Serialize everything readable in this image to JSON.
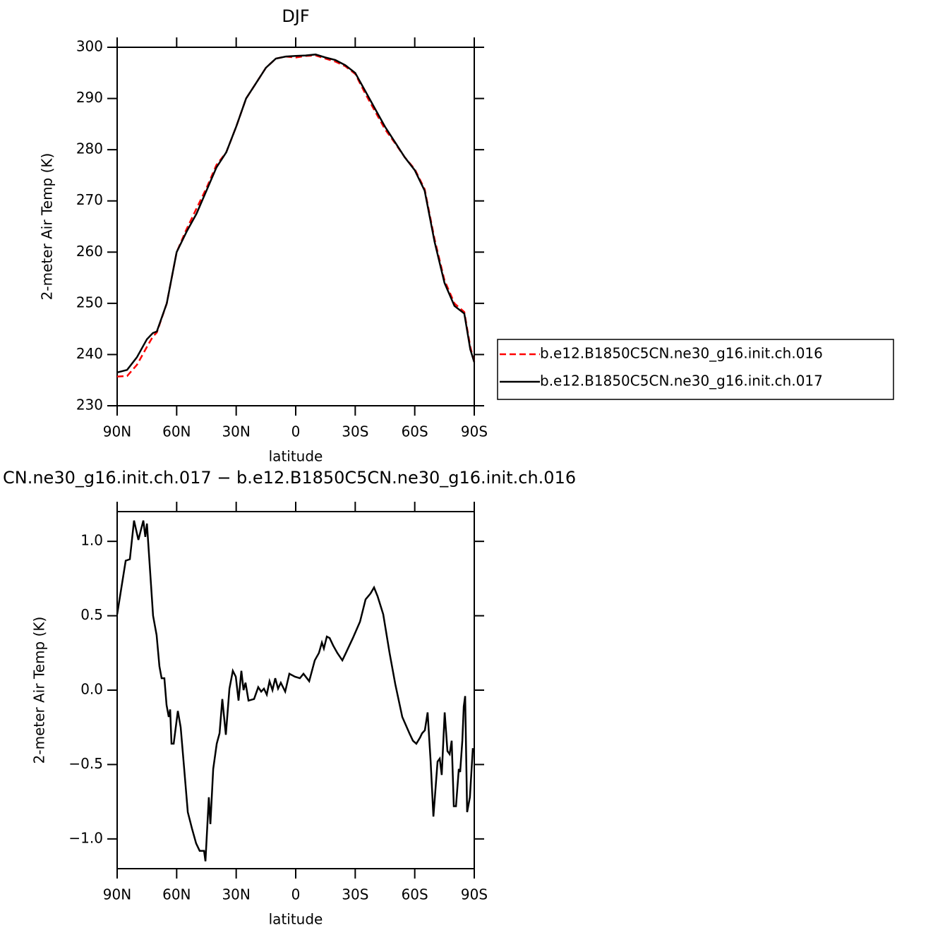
{
  "chart_data": [
    {
      "type": "line",
      "title": "DJF",
      "xlabel": "latitude",
      "ylabel": "2-meter Air Temp (K)",
      "x": [
        90,
        85,
        80,
        75,
        72,
        70,
        65,
        60,
        55,
        50,
        45,
        40,
        35,
        30,
        25,
        20,
        15,
        10,
        5,
        0,
        -5,
        -10,
        -15,
        -20,
        -25,
        -30,
        -35,
        -40,
        -45,
        -50,
        -55,
        -60,
        -65,
        -70,
        -75,
        -80,
        -85,
        -88,
        -90
      ],
      "series": [
        {
          "name": "b.e12.B1850C5CN.ne30_g16.init.ch.016",
          "color": "#ff0000",
          "line_style": "dashed",
          "values": [
            235.7,
            235.8,
            238,
            241.5,
            243.5,
            244.3,
            250,
            260,
            264.5,
            268.5,
            272.5,
            277,
            279.5,
            284.5,
            290,
            293,
            296,
            297.8,
            298.2,
            298,
            298.3,
            298.4,
            297.8,
            297.2,
            296.3,
            294.8,
            291,
            287.5,
            284,
            281.3,
            278.5,
            276.2,
            272.3,
            262.5,
            254.5,
            250,
            248.3,
            241.5,
            238.5
          ]
        },
        {
          "name": "b.e12.B1850C5CN.ne30_g16.init.ch.017",
          "color": "#000000",
          "line_style": "solid",
          "values": [
            236.5,
            237,
            239.5,
            243,
            244.2,
            244.5,
            250,
            260,
            264,
            267.5,
            272,
            276.5,
            279.5,
            284.5,
            290,
            293,
            296,
            297.8,
            298.2,
            298.3,
            298.4,
            298.6,
            298,
            297.5,
            296.5,
            295,
            291.5,
            288,
            284.5,
            281.5,
            278.5,
            276,
            272,
            262,
            254,
            249.5,
            248,
            241,
            238.5
          ]
        }
      ],
      "xlim": [
        90,
        -90
      ],
      "xticks": [
        {
          "value": 90,
          "label": "90N"
        },
        {
          "value": 60,
          "label": "60N"
        },
        {
          "value": 30,
          "label": "30N"
        },
        0,
        {
          "value": -30,
          "label": "30S"
        },
        {
          "value": -60,
          "label": "60S"
        },
        {
          "value": -90,
          "label": "90S"
        }
      ],
      "ylim": [
        230,
        300
      ],
      "yticks": [
        230,
        240,
        250,
        260,
        270,
        280,
        290,
        300
      ],
      "legend": "right"
    },
    {
      "type": "line",
      "title": "CN.ne30_g16.init.ch.017 − b.e12.B1850C5CN.ne30_g16.init.ch.016",
      "xlabel": "latitude",
      "ylabel": "2-meter Air Temp (K)",
      "x": [
        90,
        85.7,
        83.6,
        81.5,
        79.3,
        76.8,
        75.8,
        75,
        71.9,
        70.1,
        68.7,
        67.6,
        66.2,
        65.1,
        64,
        63.3,
        62.6,
        61.5,
        59.4,
        58,
        56.2,
        54.4,
        52.3,
        50.2,
        48.4,
        46.2,
        45.5,
        43.8,
        43,
        41.6,
        39.8,
        38.4,
        37,
        35.2,
        33.4,
        31.7,
        30.2,
        28.8,
        27.4,
        26.3,
        25.3,
        23.8,
        21,
        18.9,
        17.4,
        16,
        14.6,
        13.2,
        11.7,
        10.3,
        8.9,
        7.5,
        5.3,
        3.2,
        0.4,
        -2.1,
        -3.9,
        -6.8,
        -9.6,
        -11.7,
        -13.2,
        -14.2,
        -15.7,
        -17.1,
        -18.9,
        -21,
        -23.5,
        -25.3,
        -28.8,
        -32.4,
        -35.2,
        -37.7,
        -39.5,
        -41.3,
        -44.1,
        -47.3,
        -50.2,
        -53.7,
        -57.3,
        -59.1,
        -60.8,
        -62.6,
        -63.7,
        -65.1,
        -66.5,
        -68,
        -69.4,
        -71.5,
        -72.6,
        -73.6,
        -75.1,
        -76.5,
        -77.6,
        -78.6,
        -79.7,
        -80.8,
        -82.2,
        -82.9,
        -84,
        -84.7,
        -85.4,
        -86.4,
        -87.8,
        -89.3
      ],
      "series": [
        {
          "color": "#000000",
          "line_style": "solid",
          "values": [
            0.51,
            0.87,
            0.88,
            1.14,
            1.01,
            1.14,
            1.03,
            1.12,
            0.5,
            0.37,
            0.16,
            0.08,
            0.08,
            -0.1,
            -0.18,
            -0.13,
            -0.36,
            -0.36,
            -0.14,
            -0.25,
            -0.53,
            -0.82,
            -0.93,
            -1.03,
            -1.08,
            -1.08,
            -1.15,
            -0.72,
            -0.9,
            -0.53,
            -0.36,
            -0.29,
            -0.06,
            -0.3,
            0.01,
            0.13,
            0.09,
            -0.07,
            0.13,
            0,
            0.05,
            -0.07,
            -0.06,
            0.02,
            -0.01,
            0.01,
            -0.03,
            0.06,
            0,
            0.08,
            0.01,
            0.05,
            -0.01,
            0.11,
            0.09,
            0.08,
            0.11,
            0.06,
            0.2,
            0.25,
            0.32,
            0.28,
            0.36,
            0.35,
            0.3,
            0.25,
            0.2,
            0.25,
            0.35,
            0.46,
            0.61,
            0.65,
            0.69,
            0.63,
            0.51,
            0.25,
            0.04,
            -0.18,
            -0.29,
            -0.34,
            -0.36,
            -0.32,
            -0.29,
            -0.27,
            -0.15,
            -0.48,
            -0.85,
            -0.48,
            -0.46,
            -0.57,
            -0.15,
            -0.41,
            -0.43,
            -0.34,
            -0.78,
            -0.78,
            -0.53,
            -0.55,
            -0.34,
            -0.11,
            -0.04,
            -0.82,
            -0.72,
            -0.39
          ]
        }
      ],
      "xlim": [
        90,
        -90
      ],
      "xticks": [
        {
          "value": 90,
          "label": "90N"
        },
        {
          "value": 60,
          "label": "60N"
        },
        {
          "value": 30,
          "label": "30N"
        },
        0,
        {
          "value": -30,
          "label": "30S"
        },
        {
          "value": -60,
          "label": "60S"
        },
        {
          "value": -90,
          "label": "90S"
        }
      ],
      "ylim": [
        -1.2,
        1.2
      ],
      "yticks": [
        {
          "value": -1,
          "label": "−1.0"
        },
        {
          "value": -0.5,
          "label": "−0.5"
        },
        {
          "value": 0,
          "label": "0.0"
        },
        0.5,
        {
          "value": 1,
          "label": "1.0"
        }
      ]
    }
  ]
}
